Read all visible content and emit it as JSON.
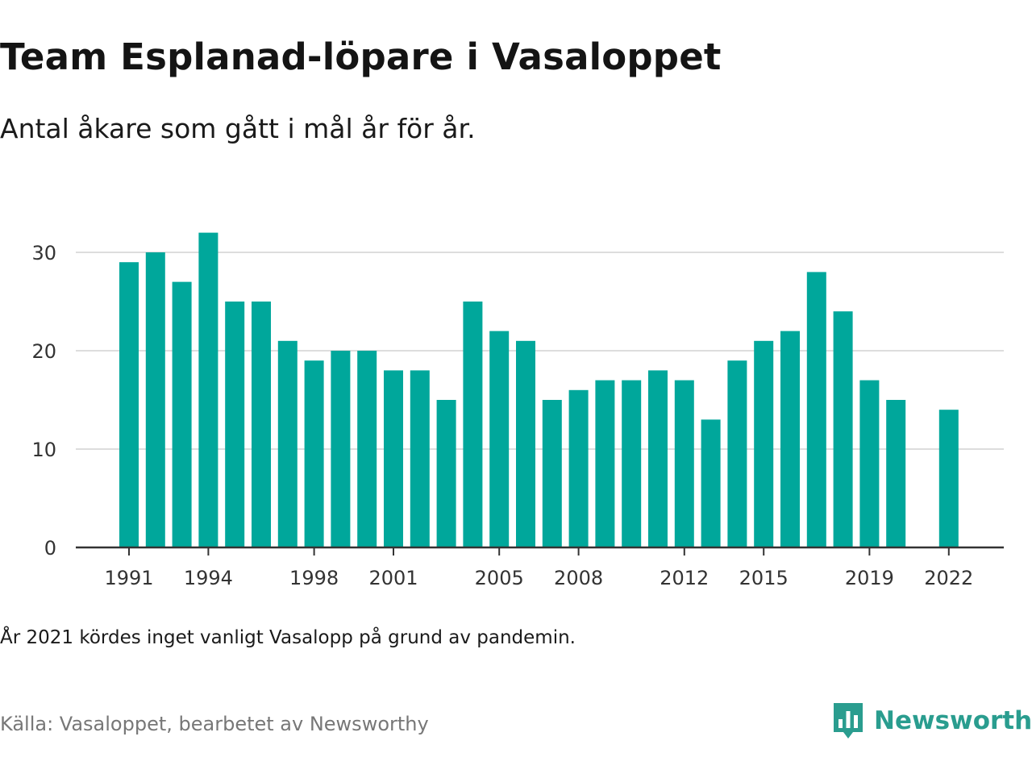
{
  "title": "Team Esplanad-löpare i Vasaloppet",
  "subtitle": "Antal åkare som gått i mål år för år.",
  "footnote": "År 2021 kördes inget vanligt Vasalopp på grund av pandemin.",
  "source": "Källa: Vasaloppet, bearbetet av Newsworthy",
  "brand": {
    "name": "Newsworthy",
    "icon": "bar-chart-bubble-icon",
    "color": "#2a9d8f"
  },
  "colors": {
    "bar": "#00a79b",
    "grid": "#dddddd",
    "axis": "#333333"
  },
  "chart_data": {
    "type": "bar",
    "categories": [
      "1991",
      "1992",
      "1993",
      "1994",
      "1995",
      "1996",
      "1997",
      "1998",
      "1999",
      "2000",
      "2001",
      "2002",
      "2003",
      "2004",
      "2005",
      "2006",
      "2007",
      "2008",
      "2009",
      "2010",
      "2011",
      "2012",
      "2013",
      "2014",
      "2015",
      "2016",
      "2017",
      "2018",
      "2019",
      "2020",
      "2021",
      "2022"
    ],
    "values": [
      29,
      30,
      27,
      32,
      25,
      25,
      21,
      19,
      20,
      20,
      18,
      18,
      15,
      25,
      22,
      21,
      15,
      16,
      17,
      17,
      18,
      17,
      13,
      19,
      21,
      22,
      28,
      24,
      17,
      15,
      null,
      14
    ],
    "x_tick_labels": [
      "1991",
      "1994",
      "1998",
      "2001",
      "2005",
      "2008",
      "2012",
      "2015",
      "2019",
      "2022"
    ],
    "y_ticks": [
      0,
      10,
      20,
      30
    ],
    "ylim": [
      0,
      34
    ],
    "grid": true,
    "legend": false
  }
}
